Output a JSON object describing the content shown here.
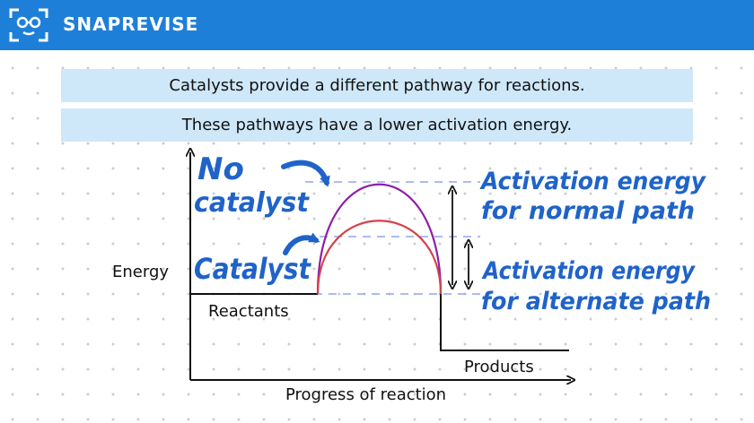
{
  "header": {
    "brand": "SNAPREVISE",
    "logo_icon": "face-glasses-icon",
    "color": "#1e7fd8"
  },
  "banners": [
    "Catalysts provide a different pathway for reactions.",
    "These pathways have a lower activation energy."
  ],
  "diagram": {
    "y_axis_label": "Energy",
    "x_axis_label": "Progress of reaction",
    "reactants_label": "Reactants",
    "products_label": "Products",
    "no_catalyst_line1": "No",
    "no_catalyst_line2": "catalyst",
    "catalyst_label": "Catalyst",
    "activation_normal_line1": "Activation energy",
    "activation_normal_line2": "for normal path",
    "activation_alternate_line1": "Activation energy",
    "activation_alternate_line2": "for alternate path",
    "colors": {
      "no_catalyst_curve": "#8e1fa8",
      "catalyst_curve": "#d4424a",
      "dashed_guides": "#8fa6ee",
      "handwriting": "#1f63c9"
    }
  }
}
